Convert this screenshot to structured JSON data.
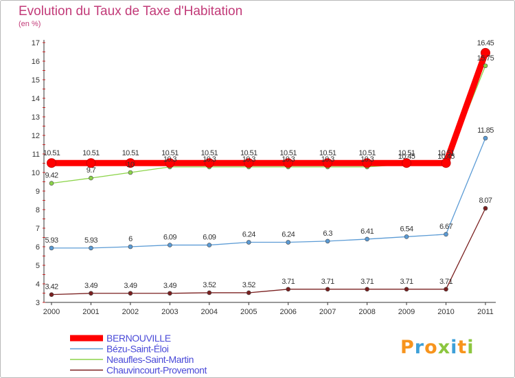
{
  "chart_data": {
    "type": "line",
    "title": "Evolution du Taux de Taxe d'Habitation",
    "subtitle": "(en %)",
    "xlabel": "",
    "ylabel": "",
    "ylim": [
      3,
      17
    ],
    "yticks": [
      "3",
      "4",
      "5",
      "6",
      "7",
      "8",
      "9",
      "10",
      "11",
      "12",
      "13",
      "14",
      "15",
      "16",
      "17"
    ],
    "categories": [
      "2000",
      "2001",
      "2002",
      "2003",
      "2004",
      "2005",
      "2006",
      "2007",
      "2008",
      "2009",
      "2010",
      "2011"
    ],
    "grid": false,
    "legend_position": "bottom-left",
    "series": [
      {
        "name": "BERNOUVILLE",
        "color": "#ff0000",
        "values": [
          10.51,
          10.51,
          10.51,
          10.51,
          10.51,
          10.51,
          10.51,
          10.51,
          10.51,
          10.51,
          10.51,
          16.45
        ],
        "labels": [
          "10.51",
          "10.51",
          "10.51",
          "10.51",
          "10.51",
          "10.51",
          "10.51",
          "10.51",
          "10.51",
          "10.51",
          "10.51",
          "16.45"
        ]
      },
      {
        "name": "Bézu-Saint-Éloi",
        "color": "#5b9bd5",
        "values": [
          5.93,
          5.93,
          6,
          6.09,
          6.09,
          6.24,
          6.24,
          6.3,
          6.41,
          6.54,
          6.67,
          11.85
        ],
        "labels": [
          "5.93",
          "5.93",
          "6",
          "6.09",
          "6.09",
          "6.24",
          "6.24",
          "6.3",
          "6.41",
          "6.54",
          "6.67",
          "11.85"
        ]
      },
      {
        "name": "Neaufles-Saint-Martin",
        "color": "#8cd44a",
        "values": [
          9.42,
          9.7,
          10,
          10.3,
          10.3,
          10.3,
          10.3,
          10.3,
          10.3,
          10.45,
          10.45,
          15.75
        ],
        "labels": [
          "9.42",
          "9.7",
          "10",
          "10.3",
          "10.3",
          "10.3",
          "10.3",
          "10.3",
          "10.3",
          "10.45",
          "10.45",
          "15.75"
        ]
      },
      {
        "name": "Chauvincourt-Provemont",
        "color": "#7a1f1f",
        "values": [
          3.42,
          3.49,
          3.49,
          3.49,
          3.52,
          3.52,
          3.71,
          3.71,
          3.71,
          3.71,
          3.71,
          8.07
        ],
        "labels": [
          "3.42",
          "3.49",
          "3.49",
          "3.49",
          "3.52",
          "3.52",
          "3.71",
          "3.71",
          "3.71",
          "3.71",
          "3.71",
          "8.07"
        ]
      }
    ]
  },
  "logo": {
    "text": "Proxiti",
    "colors": [
      "#f7941d",
      "#3ea0d8",
      "#f7941d",
      "#8cc63f",
      "#3ea0d8",
      "#f7941d",
      "#8cc63f"
    ]
  }
}
